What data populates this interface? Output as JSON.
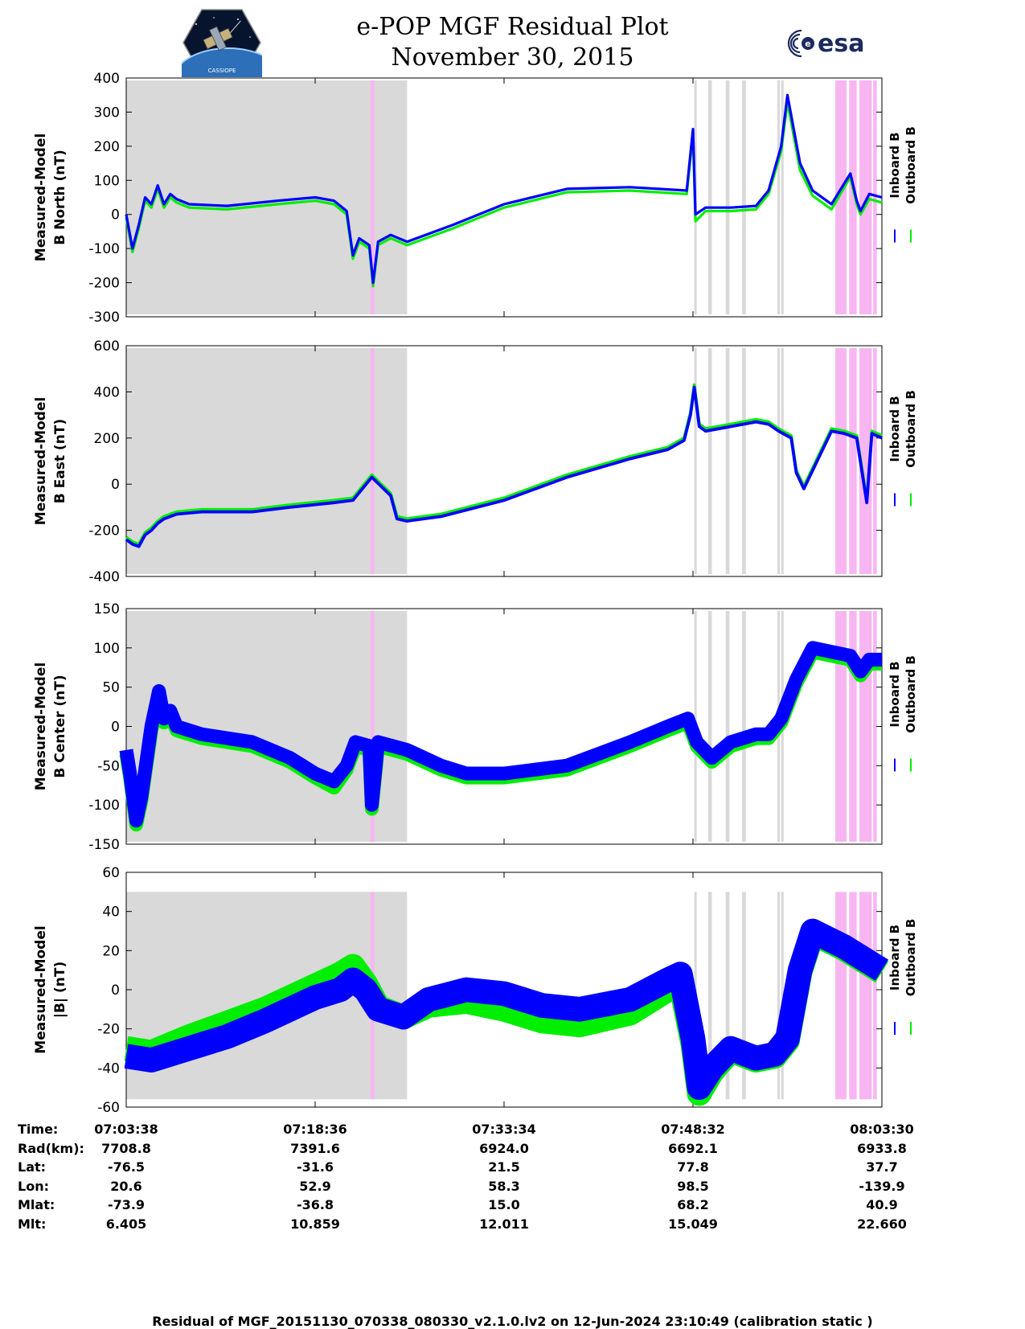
{
  "header": {
    "title": "e-POP MGF Residual Plot",
    "subtitle": "November 30, 2015",
    "logo_left_text": "CASSIOPE",
    "logo_right_text": "esa"
  },
  "legend": {
    "inboard": "Inboard B",
    "outboard": "Outboard B"
  },
  "colors": {
    "inboard": "#0000ff",
    "outboard": "#00ee00",
    "shade_gray": "#d9d9d9",
    "shade_pink": "#f7b6f2"
  },
  "x_domain": [
    0,
    60
  ],
  "shading": {
    "gray": [
      [
        0,
        22.3
      ],
      [
        45.1,
        45.3
      ],
      [
        46.2,
        46.5
      ],
      [
        47.6,
        47.9
      ],
      [
        48.9,
        49.2
      ],
      [
        51.7,
        51.9
      ],
      [
        52.0,
        52.2
      ]
    ],
    "pink": [
      [
        19.4,
        19.7
      ],
      [
        56.3,
        57.2
      ],
      [
        57.4,
        58.0
      ],
      [
        58.2,
        59.2
      ],
      [
        59.3,
        59.6
      ]
    ]
  },
  "chart_data": [
    {
      "type": "line",
      "ylabel": [
        "Measured-Model",
        "B North (nT)"
      ],
      "ylim": [
        -300,
        400
      ],
      "yticks": [
        400,
        300,
        200,
        100,
        0,
        -100,
        -200,
        -300
      ],
      "x": [
        0,
        0.5,
        1,
        1.5,
        2,
        2.5,
        3,
        3.5,
        4,
        5,
        8,
        12,
        15,
        16.5,
        17.5,
        18,
        18.5,
        19.3,
        19.6,
        20,
        21,
        22.3,
        26,
        30,
        35,
        40,
        44.5,
        45,
        45.2,
        46,
        48,
        50,
        51,
        52,
        52.5,
        53.5,
        54.5,
        56,
        57.5,
        58,
        58.3,
        59,
        60
      ],
      "series": [
        {
          "name": "Inboard B",
          "values": [
            0,
            -100,
            -30,
            50,
            30,
            85,
            30,
            60,
            45,
            30,
            25,
            40,
            50,
            40,
            10,
            -120,
            -70,
            -90,
            -200,
            -80,
            -60,
            -80,
            -30,
            30,
            75,
            80,
            70,
            250,
            0,
            20,
            20,
            25,
            70,
            200,
            350,
            150,
            70,
            30,
            120,
            40,
            10,
            60,
            50
          ]
        },
        {
          "name": "Outboard B",
          "values": [
            -10,
            -110,
            -40,
            40,
            20,
            75,
            20,
            50,
            35,
            20,
            15,
            30,
            40,
            30,
            0,
            -130,
            -80,
            -100,
            -210,
            -90,
            -70,
            -90,
            -40,
            20,
            65,
            70,
            60,
            235,
            -20,
            10,
            10,
            15,
            60,
            185,
            330,
            130,
            55,
            15,
            110,
            30,
            0,
            45,
            35
          ]
        }
      ]
    },
    {
      "type": "line",
      "ylabel": [
        "Measured-Model",
        "B East (nT)"
      ],
      "ylim": [
        -400,
        600
      ],
      "yticks": [
        600,
        400,
        200,
        0,
        -200,
        -400
      ],
      "x": [
        0,
        0.5,
        1,
        1.5,
        2,
        2.5,
        3,
        4,
        6,
        10,
        13,
        16.5,
        18,
        19.5,
        21,
        21.5,
        22.3,
        25,
        30,
        35,
        40,
        43,
        44.3,
        44.8,
        45.1,
        45.5,
        46,
        48,
        50,
        51,
        51.8,
        52.8,
        53.2,
        53.8,
        56,
        57,
        58,
        58.8,
        59.2,
        60
      ],
      "series": [
        {
          "name": "Inboard B",
          "values": [
            -240,
            -260,
            -270,
            -220,
            -200,
            -170,
            -150,
            -130,
            -120,
            -120,
            -100,
            -80,
            -70,
            30,
            -50,
            -150,
            -160,
            -140,
            -70,
            30,
            110,
            150,
            190,
            300,
            420,
            250,
            230,
            250,
            270,
            260,
            230,
            200,
            50,
            -20,
            230,
            220,
            200,
            -80,
            220,
            200
          ]
        },
        {
          "name": "Outboard B",
          "values": [
            -230,
            -250,
            -260,
            -210,
            -190,
            -160,
            -140,
            -120,
            -110,
            -110,
            -90,
            -70,
            -60,
            40,
            -40,
            -140,
            -150,
            -130,
            -60,
            40,
            120,
            160,
            200,
            310,
            430,
            260,
            240,
            260,
            280,
            270,
            240,
            210,
            60,
            -10,
            240,
            230,
            210,
            -70,
            230,
            210
          ]
        }
      ]
    },
    {
      "type": "line",
      "ylabel": [
        "Measured-Model",
        "B Center (nT)"
      ],
      "ylim": [
        -150,
        150
      ],
      "yticks": [
        150,
        100,
        50,
        0,
        -50,
        -100,
        -150
      ],
      "x": [
        0,
        0.3,
        0.8,
        1.2,
        2,
        2.6,
        3,
        3.5,
        4,
        6,
        10,
        13,
        15,
        16.5,
        17.5,
        18.2,
        19.3,
        19.5,
        20,
        22.3,
        25,
        27,
        30,
        35,
        40,
        43,
        44.6,
        45.3,
        46.5,
        48,
        50,
        51,
        52,
        53.2,
        54.5,
        56,
        57.5,
        58.3,
        59,
        60
      ],
      "series": [
        {
          "name": "Inboard B",
          "values": [
            -30,
            -60,
            -120,
            -90,
            0,
            45,
            10,
            20,
            0,
            -10,
            -20,
            -40,
            -60,
            -70,
            -50,
            -20,
            -25,
            -100,
            -20,
            -30,
            -50,
            -60,
            -60,
            -50,
            -20,
            0,
            10,
            -20,
            -40,
            -20,
            -10,
            -10,
            10,
            60,
            100,
            95,
            90,
            70,
            85,
            85
          ]
        },
        {
          "name": "Outboard B",
          "values": [
            -35,
            -65,
            -125,
            -95,
            -5,
            40,
            5,
            15,
            -5,
            -15,
            -25,
            -45,
            -65,
            -78,
            -55,
            -25,
            -30,
            -105,
            -25,
            -35,
            -55,
            -65,
            -65,
            -55,
            -25,
            -5,
            5,
            -25,
            -45,
            -25,
            -15,
            -15,
            5,
            55,
            95,
            90,
            85,
            65,
            80,
            80
          ]
        }
      ]
    },
    {
      "type": "line",
      "ylabel": [
        "Measured-Model",
        "|B| (nT)"
      ],
      "ylim": [
        -60,
        60
      ],
      "yticks": [
        60,
        40,
        20,
        0,
        -20,
        -40,
        -60
      ],
      "x": [
        0,
        2,
        5,
        8,
        11,
        13,
        15,
        17,
        18,
        19,
        20,
        22,
        24,
        27,
        30,
        33,
        36,
        40,
        43,
        44,
        45,
        45.5,
        46.5,
        48,
        50,
        51.5,
        52.5,
        53.5,
        54.5,
        57,
        60
      ],
      "series": [
        {
          "name": "Inboard B",
          "values": [
            -34,
            -36,
            -30,
            -24,
            -16,
            -10,
            -4,
            0,
            5,
            0,
            -10,
            -14,
            -5,
            0,
            -2,
            -8,
            -10,
            -5,
            5,
            8,
            -25,
            -50,
            -40,
            -30,
            -35,
            -33,
            -25,
            10,
            30,
            22,
            10
          ]
        },
        {
          "name": "Outboard B",
          "values": [
            -30,
            -32,
            -24,
            -17,
            -10,
            -4,
            2,
            8,
            12,
            3,
            -9,
            -14,
            -8,
            -6,
            -10,
            -16,
            -18,
            -12,
            0,
            4,
            -28,
            -53,
            -42,
            -31,
            -36,
            -34,
            -26,
            9,
            29,
            21,
            9
          ]
        }
      ]
    }
  ],
  "info_table": {
    "row_labels": [
      "Time:",
      "Rad(km):",
      "Lat:",
      "Lon:",
      "Mlat:",
      "Mlt:"
    ],
    "columns": [
      [
        "07:03:38",
        "7708.8",
        "-76.5",
        "20.6",
        "-73.9",
        "6.405"
      ],
      [
        "07:18:36",
        "7391.6",
        "-31.6",
        "52.9",
        "-36.8",
        "10.859"
      ],
      [
        "07:33:34",
        "6924.0",
        "21.5",
        "58.3",
        "15.0",
        "12.011"
      ],
      [
        "07:48:32",
        "6692.1",
        "77.8",
        "98.5",
        "68.2",
        "15.049"
      ],
      [
        "08:03:30",
        "6933.8",
        "37.7",
        "-139.9",
        "40.9",
        "22.660"
      ]
    ]
  },
  "footer": "Residual of MGF_20151130_070338_080330_v2.1.0.lv2 on 12-Jun-2024 23:10:49 (calibration static )"
}
